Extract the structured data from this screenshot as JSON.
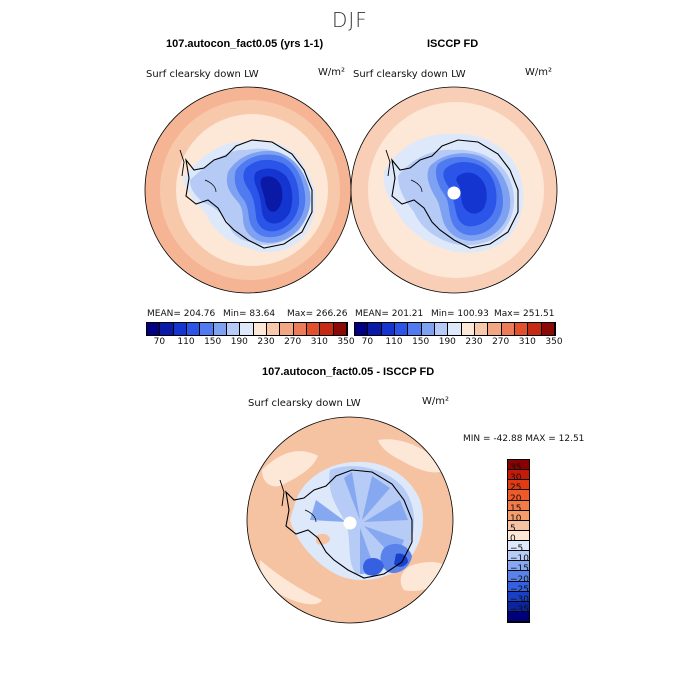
{
  "figure": {
    "title": "DJF"
  },
  "panels": {
    "model": {
      "case": "107.autocon_fact0.05 (yrs 1-1)",
      "variable": "Surf clearsky down LW",
      "units": "W/m²",
      "stats": {
        "mean": "MEAN= 204.76",
        "min": "Min=  83.64",
        "max": "Max= 266.26"
      }
    },
    "obs": {
      "case": "ISCCP FD",
      "variable": "Surf clearsky down LW",
      "units": "W/m²",
      "stats": {
        "mean": "MEAN= 201.21",
        "min": "Min= 100.93",
        "max": "Max= 251.51"
      }
    },
    "diff": {
      "case": "107.autocon_fact0.05 - ISCCP FD",
      "variable": "Surf clearsky down LW",
      "units": "W/m²",
      "stats": {
        "minmax": "MIN = -42.88 MAX =  12.51"
      }
    }
  },
  "colorbars": {
    "abs": {
      "tick_labels": [
        "70",
        "110",
        "150",
        "190",
        "230",
        "270",
        "310",
        "350"
      ],
      "colors": [
        "#000080",
        "#0a1aa6",
        "#1535d0",
        "#2a55e8",
        "#4f7af0",
        "#7ea1f2",
        "#b5cbf5",
        "#dde8fa",
        "#fde8d7",
        "#f8c8ab",
        "#f2a682",
        "#ec7c57",
        "#e2502d",
        "#c62a12",
        "#8b0a05"
      ]
    },
    "diff": {
      "tick_labels": [
        "35",
        "30",
        "25",
        "20",
        "15",
        "10",
        "5",
        "0",
        "-5",
        "-10",
        "-15",
        "-20",
        "-25",
        "-30",
        "-35"
      ],
      "colors": [
        "#8b0000",
        "#c41a0a",
        "#e23a12",
        "#f05a28",
        "#f47a46",
        "#f59d6c",
        "#f6c3a2",
        "#fde8d8",
        "#dde8fa",
        "#b6cbf5",
        "#86a8f0",
        "#5a82eb",
        "#3560e2",
        "#1a3fc8",
        "#0b24a0",
        "#00007a"
      ]
    }
  }
}
